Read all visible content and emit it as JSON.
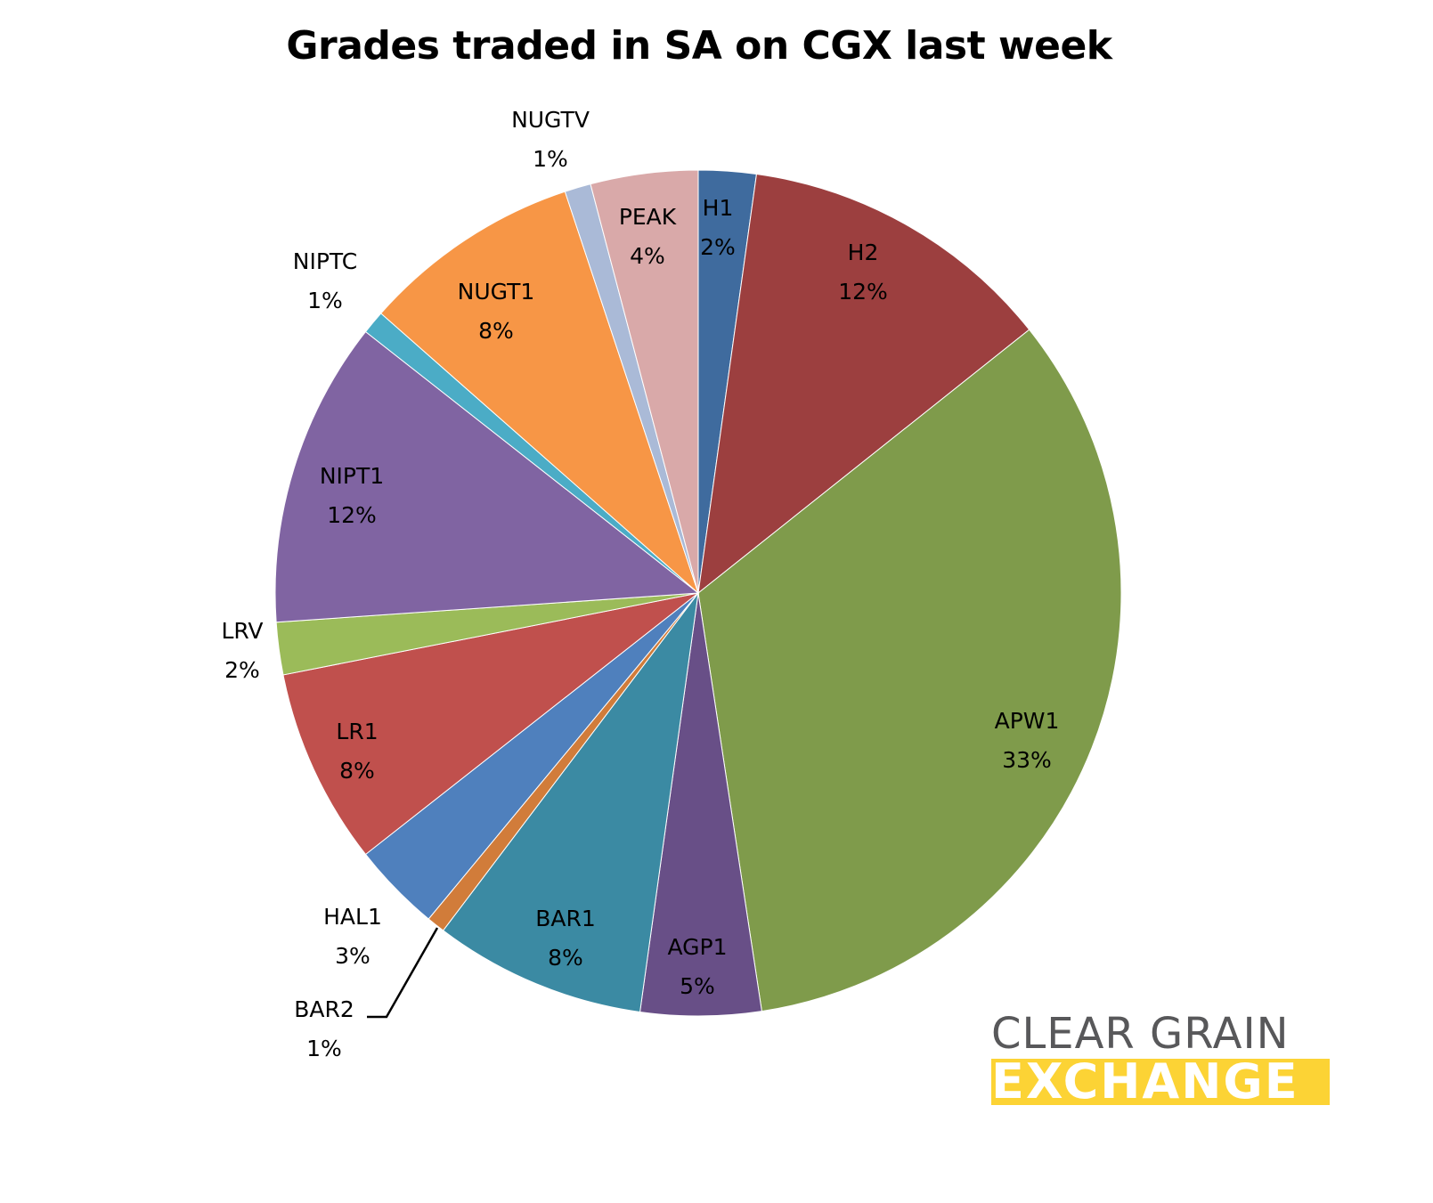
{
  "chart_data": {
    "type": "pie",
    "title": "Grades traded in SA on CGX last week",
    "categories": [
      "H1",
      "H2",
      "APW1",
      "AGP1",
      "BAR1",
      "BAR2",
      "HAL1",
      "LR1",
      "LRV",
      "NIPT1",
      "NIPTC",
      "NUGT1",
      "NUGTV",
      "PEAK"
    ],
    "values": [
      2,
      12,
      33,
      5,
      8,
      1,
      3,
      8,
      2,
      12,
      1,
      8,
      1,
      4
    ],
    "value_format": "percent",
    "slices": [
      {
        "label": "H1",
        "pct_label": "2%",
        "value": 2.2,
        "color": "#3f6b9e"
      },
      {
        "label": "H2",
        "pct_label": "12%",
        "value": 12.1,
        "color": "#9c3f3f"
      },
      {
        "label": "APW1",
        "pct_label": "33%",
        "value": 33.3,
        "color": "#7f9b4b"
      },
      {
        "label": "AGP1",
        "pct_label": "5%",
        "value": 4.6,
        "color": "#684f87"
      },
      {
        "label": "BAR1",
        "pct_label": "8%",
        "value": 8.1,
        "color": "#3b8aa3"
      },
      {
        "label": "BAR2",
        "pct_label": "1%",
        "value": 0.7,
        "color": "#d17c3a"
      },
      {
        "label": "HAL1",
        "pct_label": "3%",
        "value": 3.4,
        "color": "#4f80bd"
      },
      {
        "label": "LR1",
        "pct_label": "8%",
        "value": 7.5,
        "color": "#c0504d"
      },
      {
        "label": "LRV",
        "pct_label": "2%",
        "value": 2.0,
        "color": "#9bbb59"
      },
      {
        "label": "NIPT1",
        "pct_label": "12%",
        "value": 11.7,
        "color": "#8064a2"
      },
      {
        "label": "NIPTC",
        "pct_label": "1%",
        "value": 0.9,
        "color": "#4bacc6"
      },
      {
        "label": "NUGT1",
        "pct_label": "8%",
        "value": 8.4,
        "color": "#f79646"
      },
      {
        "label": "NUGTV",
        "pct_label": "1%",
        "value": 1.0,
        "color": "#aabad7"
      },
      {
        "label": "PEAK",
        "pct_label": "4%",
        "value": 4.1,
        "color": "#d9a9a9"
      }
    ],
    "start_angle": "12 o'clock",
    "direction": "clockwise",
    "legend": "none (data labels on slices)"
  },
  "labels": {
    "H1": {
      "name": "H1",
      "pct": "2%"
    },
    "H2": {
      "name": "H2",
      "pct": "12%"
    },
    "APW1": {
      "name": "APW1",
      "pct": "33%"
    },
    "AGP1": {
      "name": "AGP1",
      "pct": "5%"
    },
    "BAR1": {
      "name": "BAR1",
      "pct": "8%"
    },
    "BAR2": {
      "name": "BAR2",
      "pct": "1%"
    },
    "HAL1": {
      "name": "HAL1",
      "pct": "3%"
    },
    "LR1": {
      "name": "LR1",
      "pct": "8%"
    },
    "LRV": {
      "name": "LRV",
      "pct": "2%"
    },
    "NIPT1": {
      "name": "NIPT1",
      "pct": "12%"
    },
    "NIPTC": {
      "name": "NIPTC",
      "pct": "1%"
    },
    "NUGT1": {
      "name": "NUGT1",
      "pct": "8%"
    },
    "NUGTV": {
      "name": "NUGTV",
      "pct": "1%"
    },
    "PEAK": {
      "name": "PEAK",
      "pct": "4%"
    }
  },
  "logo": {
    "line1": "CLEAR GRAIN",
    "line2": "EXCHANGE",
    "grey": "#58585a",
    "yellow": "#fcd335"
  }
}
